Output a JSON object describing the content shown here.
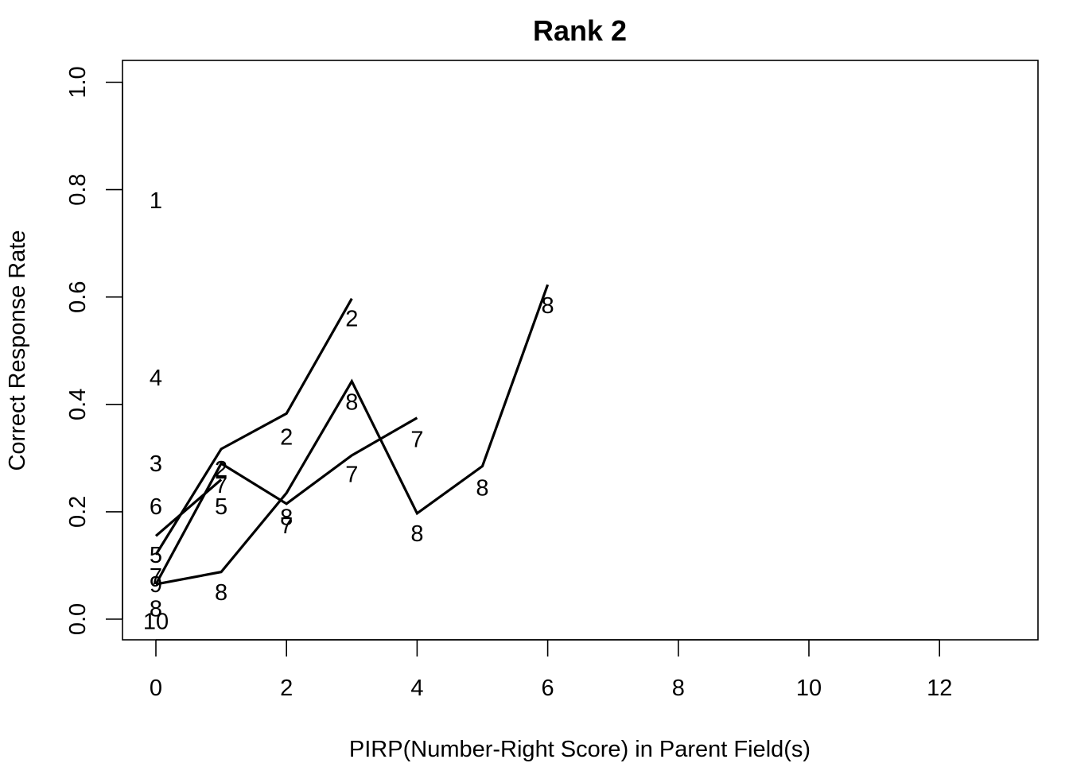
{
  "chart_data": {
    "type": "line",
    "title": "Rank 2",
    "xlabel": "PIRP(Number-Right Score) in Parent Field(s)",
    "ylabel": "Correct Response Rate",
    "xlim": [
      -0.5,
      13.0
    ],
    "ylim": [
      -0.04,
      1.04
    ],
    "xticks": [
      0,
      2,
      4,
      6,
      8,
      10,
      12
    ],
    "yticks": [
      0.0,
      0.2,
      0.4,
      0.6,
      0.8,
      1.0
    ],
    "x_tick_labels": [
      "0",
      "2",
      "4",
      "6",
      "8",
      "10",
      "12"
    ],
    "y_tick_labels": [
      "0.0",
      "0.2",
      "0.4",
      "0.6",
      "0.8",
      "1.0"
    ],
    "line_color": "#000000",
    "grid": false,
    "series": [
      {
        "x": [
          0,
          1,
          2,
          3
        ],
        "y": [
          0.12,
          0.317,
          0.383,
          0.597
        ]
      },
      {
        "x": [
          0,
          1,
          2,
          3,
          4,
          5,
          6
        ],
        "y": [
          0.065,
          0.088,
          0.235,
          0.443,
          0.197,
          0.285,
          0.623
        ]
      },
      {
        "x": [
          0,
          1,
          2,
          3,
          4
        ],
        "y": [
          0.065,
          0.29,
          0.215,
          0.305,
          0.375
        ]
      },
      {
        "x": [
          0,
          1
        ],
        "y": [
          0.155,
          0.26
        ]
      }
    ],
    "point_labels": [
      {
        "text": "1",
        "x": 0,
        "y": 0.78
      },
      {
        "text": "4",
        "x": 0,
        "y": 0.45
      },
      {
        "text": "3",
        "x": 0,
        "y": 0.29
      },
      {
        "text": "6",
        "x": 0,
        "y": 0.21
      },
      {
        "text": "5",
        "x": 0,
        "y": 0.12
      },
      {
        "text": "7",
        "x": 0,
        "y": 0.08
      },
      {
        "text": "9",
        "x": 0,
        "y": 0.065
      },
      {
        "text": "8",
        "x": 0,
        "y": 0.02
      },
      {
        "text": "10",
        "x": 0,
        "y": -0.004
      },
      {
        "text": "2",
        "x": 1,
        "y": 0.28
      },
      {
        "text": "7",
        "x": 1,
        "y": 0.25
      },
      {
        "text": "5",
        "x": 1,
        "y": 0.21
      },
      {
        "text": "8",
        "x": 1,
        "y": 0.05
      },
      {
        "text": "2",
        "x": 2,
        "y": 0.34
      },
      {
        "text": "8",
        "x": 2,
        "y": 0.19
      },
      {
        "text": "7",
        "x": 2,
        "y": 0.175
      },
      {
        "text": "2",
        "x": 3,
        "y": 0.56
      },
      {
        "text": "8",
        "x": 3,
        "y": 0.405
      },
      {
        "text": "7",
        "x": 3,
        "y": 0.27
      },
      {
        "text": "7",
        "x": 4,
        "y": 0.335
      },
      {
        "text": "8",
        "x": 4,
        "y": 0.16
      },
      {
        "text": "8",
        "x": 5,
        "y": 0.245
      },
      {
        "text": "8",
        "x": 6,
        "y": 0.585
      }
    ]
  }
}
